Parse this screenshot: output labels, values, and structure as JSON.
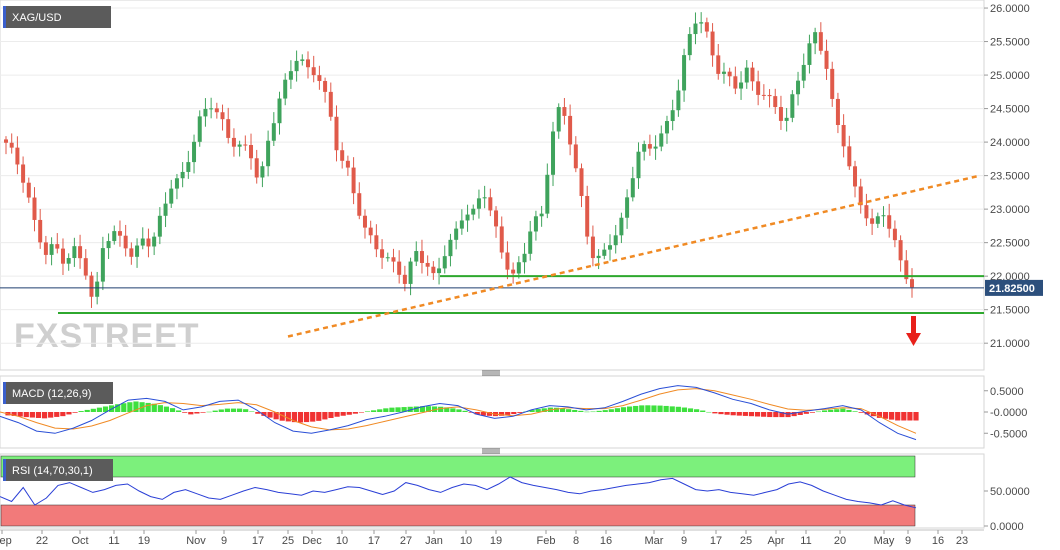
{
  "chart_data": [
    {
      "type": "candlestick",
      "title": "XAG/USD",
      "last_price_label": "21.82500",
      "last_price": 21.825,
      "ylim": [
        20.6,
        26.12
      ],
      "y_ticks": [
        "21.0000",
        "21.5000",
        "22.0000",
        "22.5000",
        "23.0000",
        "23.5000",
        "24.0000",
        "24.5000",
        "25.0000",
        "25.5000",
        "26.0000"
      ],
      "y_tick_values": [
        21.0,
        21.5,
        22.0,
        22.5,
        23.0,
        23.5,
        24.0,
        24.5,
        25.0,
        25.5,
        26.0
      ],
      "x_ticks": [
        "Sep",
        "22",
        "Oct",
        "11",
        "19",
        "Nov",
        "9",
        "17",
        "25",
        "Dec",
        "10",
        "17",
        "27",
        "Jan",
        "10",
        "19",
        "Feb",
        "8",
        "16",
        "Mar",
        "9",
        "17",
        "25",
        "Apr",
        "11",
        "20",
        "May",
        "9",
        "16",
        "23"
      ],
      "close_path": [
        23.95,
        23.75,
        23.4,
        22.75,
        22.3,
        22.45,
        22.25,
        22.4,
        22.15,
        21.5,
        22.55,
        22.65,
        22.5,
        22.25,
        22.6,
        22.5,
        22.9,
        23.35,
        23.5,
        23.9,
        24.35,
        24.55,
        24.4,
        24.05,
        23.9,
        23.85,
        23.4,
        24.1,
        24.6,
        24.95,
        25.35,
        25.1,
        25.0,
        24.55,
        23.9,
        23.65,
        23.05,
        22.6,
        22.45,
        22.3,
        22.15,
        21.85,
        22.4,
        22.25,
        21.95,
        22.3,
        22.6,
        23.0,
        22.95,
        23.25,
        22.85,
        22.35,
        22.0,
        22.2,
        22.8,
        22.95,
        24.1,
        24.55,
        23.95,
        23.25,
        22.35,
        22.2,
        22.5,
        22.75,
        23.35,
        23.85,
        23.9,
        24.05,
        24.35,
        24.75,
        25.5,
        25.95,
        25.6,
        25.05,
        24.95,
        24.85,
        25.1,
        24.75,
        24.65,
        24.55,
        24.3,
        24.8,
        25.2,
        25.65,
        25.35,
        24.4,
        23.95,
        23.35,
        23.05,
        22.7,
        22.95,
        22.6,
        22.2,
        21.82
      ],
      "support_levels": [
        22.0,
        21.45
      ],
      "trendline": {
        "from": [
          21.1,
          "Dec"
        ],
        "to": [
          23.5,
          "23"
        ]
      },
      "indicators": [
        {
          "name": "MACD (12,26,9)",
          "y_ticks": [
            "0.5000",
            "-0.0000",
            "-0.5000"
          ],
          "y_tick_values": [
            0.5,
            0.0,
            -0.5
          ],
          "ylim": [
            -0.8,
            0.8
          ],
          "macd_path": [
            -0.1,
            -0.25,
            -0.45,
            -0.5,
            -0.38,
            -0.2,
            0.05,
            0.28,
            0.32,
            0.25,
            0.05,
            0.12,
            0.25,
            0.28,
            0.05,
            -0.25,
            -0.45,
            -0.5,
            -0.42,
            -0.32,
            -0.18,
            -0.1,
            0.0,
            0.12,
            0.2,
            0.15,
            -0.05,
            -0.15,
            -0.1,
            0.05,
            0.15,
            0.12,
            0.05,
            0.1,
            0.25,
            0.42,
            0.55,
            0.62,
            0.58,
            0.45,
            0.3,
            0.2,
            0.05,
            -0.05,
            0.02,
            0.08,
            0.15,
            0.05,
            -0.25,
            -0.5,
            -0.65
          ],
          "signal_path": [
            0.0,
            -0.1,
            -0.25,
            -0.38,
            -0.4,
            -0.33,
            -0.2,
            -0.02,
            0.15,
            0.22,
            0.2,
            0.15,
            0.18,
            0.22,
            0.17,
            0.0,
            -0.2,
            -0.35,
            -0.42,
            -0.4,
            -0.32,
            -0.22,
            -0.12,
            -0.02,
            0.08,
            0.12,
            0.05,
            -0.05,
            -0.09,
            -0.05,
            0.05,
            0.1,
            0.08,
            0.08,
            0.15,
            0.28,
            0.42,
            0.52,
            0.55,
            0.5,
            0.4,
            0.3,
            0.18,
            0.07,
            0.04,
            0.06,
            0.1,
            0.08,
            -0.1,
            -0.32,
            -0.5
          ],
          "histogram": [
            -0.08,
            -0.12,
            -0.15,
            -0.1,
            0.02,
            0.1,
            0.18,
            0.25,
            0.2,
            0.1,
            -0.06,
            0.0,
            0.08,
            0.08,
            -0.08,
            -0.2,
            -0.25,
            -0.22,
            -0.12,
            -0.05,
            0.03,
            0.1,
            0.12,
            0.14,
            0.12,
            0.05,
            -0.08,
            -0.1,
            -0.04,
            0.06,
            0.11,
            0.06,
            0.0,
            0.05,
            0.12,
            0.16,
            0.15,
            0.12,
            0.06,
            -0.04,
            -0.08,
            -0.1,
            -0.12,
            -0.12,
            -0.04,
            0.04,
            0.08,
            -0.02,
            -0.14,
            -0.2,
            -0.2
          ]
        },
        {
          "name": "RSI (14,70,30,1)",
          "y_ticks": [
            "50.0000",
            "0.0000"
          ],
          "y_tick_values": [
            50.0,
            0.0
          ],
          "ylim": [
            0,
            100
          ],
          "overbought": 70,
          "oversold": 30,
          "rsi_path": [
            42,
            35,
            55,
            30,
            40,
            58,
            62,
            55,
            48,
            52,
            58,
            60,
            50,
            42,
            38,
            48,
            52,
            46,
            40,
            38,
            44,
            50,
            55,
            52,
            48,
            46,
            44,
            50,
            48,
            52,
            56,
            55,
            50,
            45,
            50,
            62,
            58,
            52,
            48,
            55,
            60,
            58,
            52,
            60,
            70,
            62,
            58,
            55,
            52,
            48,
            46,
            50,
            52,
            55,
            58,
            60,
            62,
            66,
            68,
            60,
            52,
            50,
            52,
            48,
            46,
            44,
            48,
            52,
            60,
            63,
            58,
            50,
            44,
            38,
            35,
            33,
            30,
            36,
            30,
            26
          ]
        }
      ]
    }
  ],
  "watermark": "FXSTREET",
  "colors": {
    "up": "#3fa35c",
    "down": "#e05a4a",
    "support": "#2ea82e",
    "trendline": "#f08a24",
    "price_line": "#1f3f6f",
    "price_box": "#2c4f7c",
    "macd_line": "#2a4fd6",
    "signal_line": "#f08a24",
    "hist_pos": "#3ee03e",
    "hist_neg": "#f03232",
    "rsi_over_fill": "#7cf07c",
    "rsi_under_fill": "#f27a7a",
    "rsi_line": "#2a3fd6",
    "title_box": "#5b5b5b"
  },
  "icons": {
    "arrow": "down-arrow-icon",
    "splitter": "pane-splitter-icon"
  }
}
